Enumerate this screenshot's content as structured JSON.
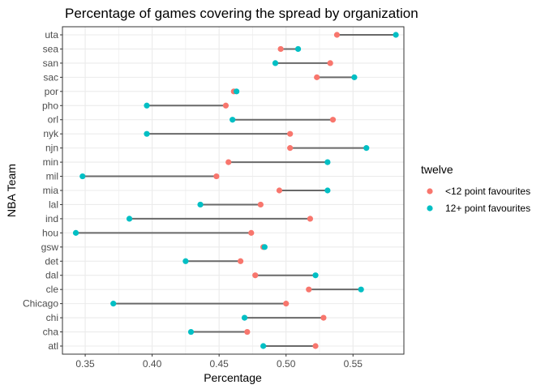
{
  "chart_data": {
    "type": "dumbbell",
    "title": "Percentage of games covering the spread by organization",
    "xlabel": "Percentage",
    "ylabel": "NBA Team",
    "xlim": [
      0.333,
      0.588
    ],
    "xticks": [
      0.35,
      0.4,
      0.45,
      0.5,
      0.55
    ],
    "xtick_labels": [
      "0.35",
      "0.40",
      "0.45",
      "0.50",
      "0.55"
    ],
    "grid": true,
    "legend": {
      "title": "twelve",
      "placement": "right",
      "entries": [
        {
          "label": "<12 point favourites",
          "color": "#F8766D"
        },
        {
          "label": "12+ point favourites",
          "color": "#00BFC4"
        }
      ]
    },
    "categories": [
      "atl",
      "cha",
      "chi",
      "Chicago",
      "cle",
      "dal",
      "det",
      "gsw",
      "hou",
      "ind",
      "lal",
      "mia",
      "mil",
      "min",
      "njn",
      "nyk",
      "orl",
      "pho",
      "por",
      "sac",
      "san",
      "sea",
      "uta"
    ],
    "series": [
      {
        "name": "<12 point favourites",
        "color": "#F8766D",
        "values": [
          0.522,
          0.471,
          0.528,
          0.5,
          0.517,
          0.477,
          0.466,
          0.483,
          0.474,
          0.518,
          0.481,
          0.495,
          0.448,
          0.457,
          0.503,
          0.503,
          0.535,
          0.455,
          0.461,
          0.523,
          0.533,
          0.496,
          0.538
        ]
      },
      {
        "name": "12+ point favourites",
        "color": "#00BFC4",
        "values": [
          0.483,
          0.429,
          0.469,
          0.371,
          0.556,
          0.522,
          0.425,
          0.484,
          0.343,
          0.383,
          0.436,
          0.531,
          0.348,
          0.531,
          0.56,
          0.396,
          0.46,
          0.396,
          0.463,
          0.551,
          0.492,
          0.509,
          0.582
        ]
      }
    ],
    "segment_color": "#696969",
    "panel_background": "#ffffff",
    "grid_color": "#ebebeb"
  }
}
